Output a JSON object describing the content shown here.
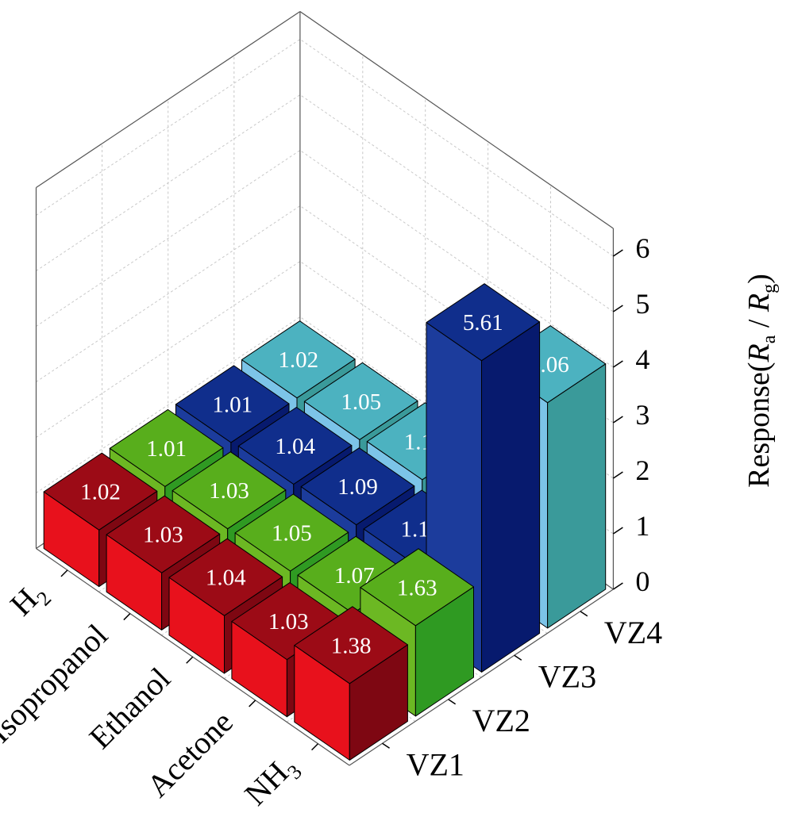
{
  "chart_data": {
    "type": "bar",
    "subtype": "3d-bar",
    "title": "",
    "categories": [
      "NH3",
      "Acetone",
      "Ethanol",
      "Isopropanol",
      "H2"
    ],
    "category_labels": [
      {
        "main": "NH",
        "sub": "3"
      },
      {
        "main": "Acetone",
        "sub": ""
      },
      {
        "main": "Ethanol",
        "sub": ""
      },
      {
        "main": "Isopropanol",
        "sub": ""
      },
      {
        "main": "H",
        "sub": "2"
      }
    ],
    "series": [
      {
        "name": "VZ1",
        "values": [
          1.38,
          1.03,
          1.04,
          1.03,
          1.02
        ],
        "colors": {
          "front": "#e8111c",
          "side": "#7e0712",
          "top": "#9c0b16"
        }
      },
      {
        "name": "VZ2",
        "values": [
          1.63,
          1.07,
          1.05,
          1.03,
          1.01
        ],
        "colors": {
          "front": "#6cb823",
          "side": "#2f9a22",
          "top": "#58ae1c"
        }
      },
      {
        "name": "VZ3",
        "values": [
          5.61,
          1.11,
          1.09,
          1.04,
          1.01
        ],
        "colors": {
          "front": "#1c3c9c",
          "side": "#071a6e",
          "top": "#102e8c"
        }
      },
      {
        "name": "VZ4",
        "values": [
          4.06,
          1.13,
          1.11,
          1.05,
          1.02
        ],
        "colors": {
          "front": "#7cc4e8",
          "side": "#3a9a9a",
          "top": "#4cb2c0"
        }
      }
    ],
    "zlabel": {
      "prefix": "Response(",
      "var1": "R",
      "sub1": "a",
      "sep": " / ",
      "var2": "R",
      "sub2": "g",
      "suffix": ")"
    },
    "zlim": [
      0,
      6.5
    ],
    "zticks": [
      0,
      1,
      2,
      3,
      4,
      5,
      6
    ],
    "grid": true,
    "gridColor": "#c8c8c8",
    "labelColor": "#ffffff"
  }
}
